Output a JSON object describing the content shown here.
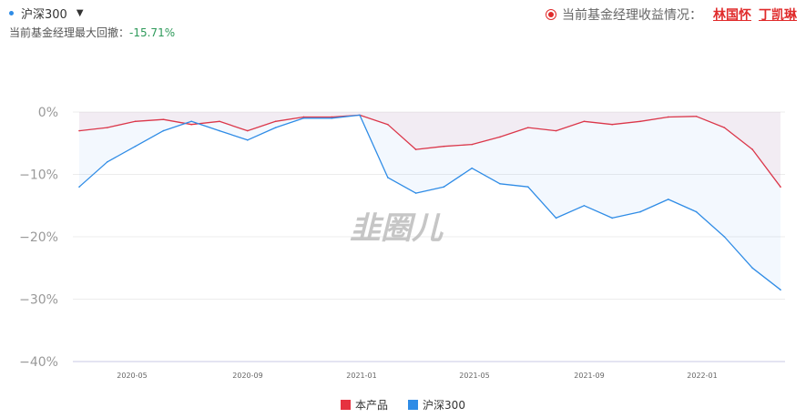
{
  "header": {
    "benchmark_selector": "沪深300",
    "drawdown_label": "当前基金经理最大回撤：",
    "drawdown_value": "-15.71%",
    "manager_prefix": "当前基金经理收益情况：",
    "managers": [
      "林国怀",
      "丁凯琳"
    ]
  },
  "watermark": "韭圈儿",
  "colors": {
    "product": "#e63240",
    "benchmark": "#2f8ce6"
  },
  "chart_data": {
    "type": "line",
    "title": "",
    "xlabel": "",
    "ylabel": "",
    "x_tick_labels": [
      "2020-05",
      "2020-09",
      "2021-01",
      "2021-05",
      "2021-09",
      "2022-01"
    ],
    "y_tick_labels": [
      "0%",
      "−10%",
      "−20%",
      "−30%",
      "−40%"
    ],
    "ylim": [
      -40,
      0
    ],
    "grid": true,
    "legend_position": "bottom",
    "x": [
      "2020-03",
      "2020-04",
      "2020-05",
      "2020-06",
      "2020-07",
      "2020-08",
      "2020-09",
      "2020-10",
      "2020-11",
      "2020-12",
      "2021-01",
      "2021-02",
      "2021-03",
      "2021-04",
      "2021-05",
      "2021-06",
      "2021-07",
      "2021-08",
      "2021-09",
      "2021-10",
      "2021-11",
      "2021-12",
      "2022-01",
      "2022-02",
      "2022-03",
      "2022-04"
    ],
    "series": [
      {
        "name": "本产品",
        "values": [
          -3,
          -2.5,
          -1.5,
          -1.2,
          -2,
          -1.5,
          -3,
          -1.5,
          -0.8,
          -0.8,
          -0.5,
          -2,
          -6,
          -5.5,
          -5.2,
          -4,
          -2.5,
          -3,
          -1.5,
          -2,
          -1.5,
          -0.8,
          -0.7,
          -2.5,
          -6,
          -12
        ]
      },
      {
        "name": "沪深300",
        "values": [
          -12,
          -8,
          -5.5,
          -3,
          -1.5,
          -3,
          -4.5,
          -2.5,
          -1,
          -1,
          -0.5,
          -10.5,
          -13,
          -12,
          -9,
          -11.5,
          -12,
          -17,
          -15,
          -17,
          -16,
          -14,
          -16,
          -20,
          -25,
          -28.5
        ]
      }
    ]
  }
}
